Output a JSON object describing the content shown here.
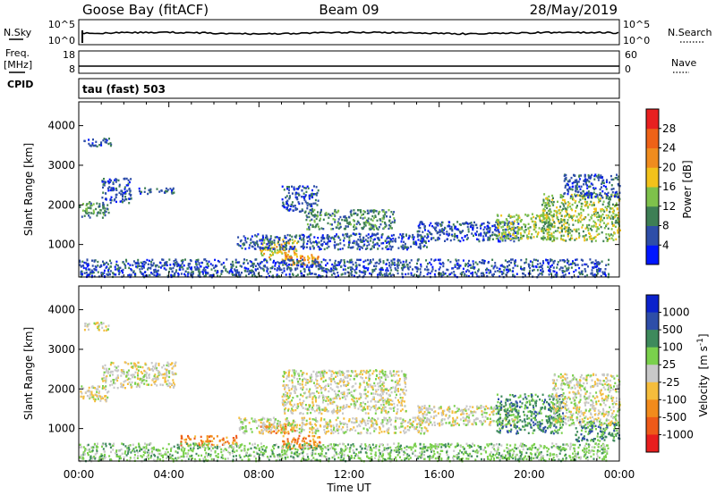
{
  "header": {
    "station": "Goose Bay (fitACF)",
    "beam": "Beam 09",
    "date": "28/May/2019"
  },
  "noise_panel": {
    "left_label": "N.Sky",
    "left_top": "10^5",
    "left_bottom": "10^0",
    "right_label": "N.Search",
    "right_top": "10^5",
    "right_bottom": "10^0"
  },
  "freq_panel": {
    "left_label_1": "Freq.",
    "left_label_2": "[MHz]",
    "left_label_3": "CPID",
    "left_top": "18",
    "left_bottom": "8",
    "right_label": "Nave",
    "right_top": "60",
    "right_bottom": "0"
  },
  "cpid_panel": {
    "text": "tau (fast) 503"
  },
  "colors": {
    "power": [
      "#0016ff",
      "#2e4ea8",
      "#3e7f55",
      "#7ec14b",
      "#f2c21b",
      "#f08c1e",
      "#ee6217",
      "#e82020"
    ],
    "velocity": [
      "#e81e1e",
      "#ee5a19",
      "#f28b1c",
      "#f5bd3c",
      "#c8c8c8",
      "#7ad04c",
      "#3e8a5c",
      "#2e4ea8",
      "#0b22cc"
    ]
  },
  "chart_data": [
    {
      "type": "heatmap",
      "quantity": "Power",
      "xlabel": "",
      "ylabel": "Slant Range [km]",
      "xlim": [
        0,
        24
      ],
      "ylim": [
        180,
        4600
      ],
      "y_ticks": [
        1000,
        2000,
        3000,
        4000
      ],
      "colorbar": {
        "label": "Power [dB]",
        "range": [
          0,
          32
        ],
        "ticks": [
          4,
          8,
          12,
          16,
          20,
          24,
          28
        ]
      },
      "echo_regions": [
        {
          "t": [
            0.0,
            1.3
          ],
          "r": [
            1700,
            2100
          ],
          "level": 2
        },
        {
          "t": [
            1.0,
            2.3
          ],
          "r": [
            2050,
            2700
          ],
          "level": 1
        },
        {
          "t": [
            0.2,
            1.4
          ],
          "r": [
            3500,
            3700
          ],
          "level": 1
        },
        {
          "t": [
            2.5,
            4.3
          ],
          "r": [
            2300,
            2450
          ],
          "level": 1
        },
        {
          "t": [
            8.0,
            9.7
          ],
          "r": [
            700,
            1150
          ],
          "level": 4
        },
        {
          "t": [
            9.0,
            10.7
          ],
          "r": [
            500,
            800
          ],
          "level": 5
        },
        {
          "t": [
            9.0,
            10.6
          ],
          "r": [
            1850,
            2500
          ],
          "level": 1
        },
        {
          "t": [
            10.0,
            14.0
          ],
          "r": [
            1400,
            1900
          ],
          "level": 2
        },
        {
          "t": [
            7.0,
            15.5
          ],
          "r": [
            900,
            1300
          ],
          "level": 1
        },
        {
          "t": [
            15.0,
            19.5
          ],
          "r": [
            1100,
            1600
          ],
          "level": 1
        },
        {
          "t": [
            18.5,
            21.0
          ],
          "r": [
            1150,
            1800
          ],
          "level": 3
        },
        {
          "t": [
            20.5,
            24.0
          ],
          "r": [
            1100,
            2300
          ],
          "level": 3
        },
        {
          "t": [
            21.5,
            24.0
          ],
          "r": [
            2200,
            2800
          ],
          "level": 1
        },
        {
          "t": [
            0.0,
            23.5
          ],
          "r": [
            200,
            650
          ],
          "level": 1
        }
      ]
    },
    {
      "type": "heatmap",
      "quantity": "Velocity",
      "xlabel": "Time UT",
      "ylabel": "Slant Range [km]",
      "xlim": [
        0,
        24
      ],
      "ylim": [
        180,
        4600
      ],
      "x_ticks": [
        "00:00",
        "04:00",
        "08:00",
        "12:00",
        "16:00",
        "20:00",
        "00:00"
      ],
      "y_ticks": [
        1000,
        2000,
        3000,
        4000
      ],
      "colorbar": {
        "label_main": "Velocity",
        "label_unit": "[m s",
        "label_exp": "-1",
        "label_close": "]",
        "ticks": [
          "1000",
          "500",
          "100",
          "25",
          "-25",
          "-100",
          "-500",
          "-1000"
        ]
      },
      "echo_regions": [
        {
          "t": [
            0.0,
            1.3
          ],
          "r": [
            1700,
            2100
          ],
          "level": 4
        },
        {
          "t": [
            1.0,
            4.3
          ],
          "r": [
            2050,
            2700
          ],
          "level": 4
        },
        {
          "t": [
            0.2,
            1.4
          ],
          "r": [
            3500,
            3700
          ],
          "level": 4
        },
        {
          "t": [
            4.5,
            7.0
          ],
          "r": [
            600,
            850
          ],
          "level": 2
        },
        {
          "t": [
            8.0,
            9.7
          ],
          "r": [
            900,
            1150
          ],
          "level": 2
        },
        {
          "t": [
            9.0,
            10.7
          ],
          "r": [
            500,
            850
          ],
          "level": 2
        },
        {
          "t": [
            9.0,
            14.5
          ],
          "r": [
            1400,
            2500
          ],
          "level": 4
        },
        {
          "t": [
            7.0,
            15.5
          ],
          "r": [
            900,
            1300
          ],
          "level": 4
        },
        {
          "t": [
            15.0,
            19.5
          ],
          "r": [
            1100,
            1600
          ],
          "level": 4
        },
        {
          "t": [
            18.5,
            21.5
          ],
          "r": [
            900,
            1900
          ],
          "level": 6
        },
        {
          "t": [
            21.0,
            24.0
          ],
          "r": [
            1100,
            2400
          ],
          "level": 4
        },
        {
          "t": [
            22.0,
            24.0
          ],
          "r": [
            700,
            1200
          ],
          "level": 6
        },
        {
          "t": [
            0.0,
            23.5
          ],
          "r": [
            200,
            650
          ],
          "level": 5
        }
      ]
    }
  ]
}
